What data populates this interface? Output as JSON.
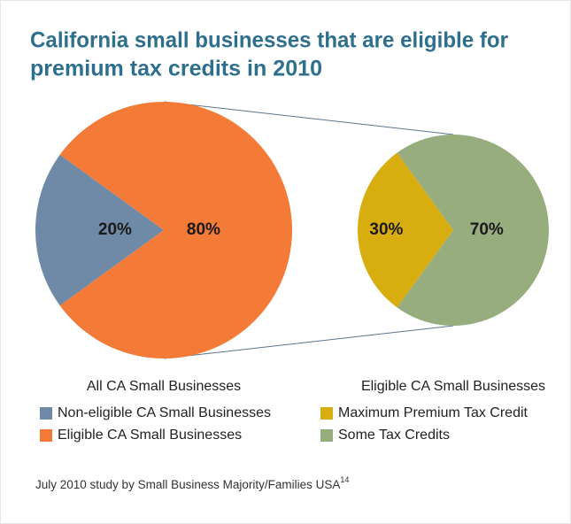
{
  "title": [
    "California small businesses that are eligible for",
    "premium tax credits in 2010"
  ],
  "source": "July 2010 study by Small Business Majority/Families USA",
  "source_note": "14",
  "chart_data": [
    {
      "type": "pie",
      "label": "All CA Small Businesses",
      "categories": [
        "Non-eligible CA Small Businesses",
        "Eligible CA Small Businesses"
      ],
      "values": [
        20,
        80
      ],
      "value_labels": [
        "20%",
        "80%"
      ],
      "colors": [
        "#6f8aa6",
        "#f47a38"
      ]
    },
    {
      "type": "pie",
      "label": "Eligible CA Small Businesses",
      "categories": [
        "Maximum Premium Tax Credit",
        "Some Tax Credits"
      ],
      "values": [
        30,
        70
      ],
      "value_labels": [
        "30%",
        "70%"
      ],
      "colors": [
        "#d8ad0f",
        "#97ad7e"
      ]
    }
  ]
}
